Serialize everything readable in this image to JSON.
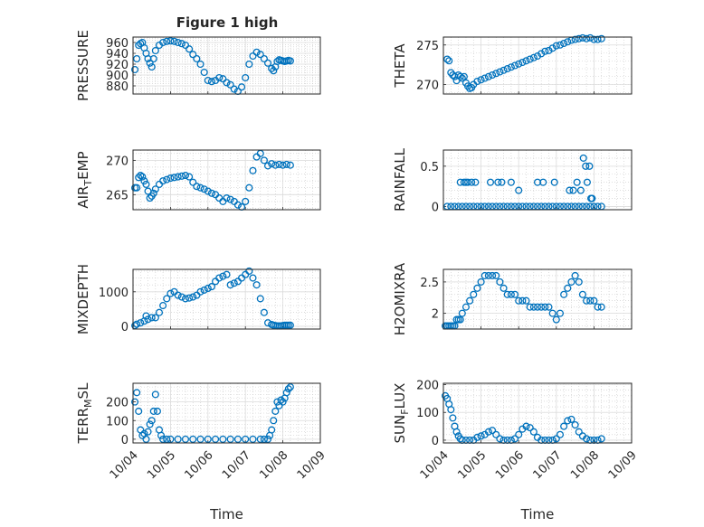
{
  "figure_title": "Figure 1 high",
  "x_tick_labels": [
    "10/04",
    "10/05",
    "10/06",
    "10/07",
    "10/08",
    "10/09"
  ],
  "x_label": "Time",
  "marker_color": "#0072BD",
  "chart_data": [
    {
      "type": "scatter",
      "ylabel": "PRESSURE",
      "yticks": [
        "880",
        "900",
        "920",
        "940",
        "960"
      ],
      "ylim": [
        865,
        970
      ],
      "xlim": [
        0,
        5
      ],
      "x": [
        0.05,
        0.1,
        0.15,
        0.2,
        0.25,
        0.3,
        0.35,
        0.4,
        0.45,
        0.5,
        0.55,
        0.6,
        0.7,
        0.8,
        0.9,
        1.0,
        1.1,
        1.2,
        1.3,
        1.4,
        1.5,
        1.6,
        1.7,
        1.8,
        1.9,
        2.0,
        2.1,
        2.2,
        2.3,
        2.4,
        2.5,
        2.6,
        2.7,
        2.8,
        2.9,
        3.0,
        3.1,
        3.2,
        3.3,
        3.4,
        3.5,
        3.6,
        3.7,
        3.75,
        3.8,
        3.85,
        3.9,
        3.95,
        4.0,
        4.05,
        4.1,
        4.15,
        4.2
      ],
      "y": [
        910,
        930,
        955,
        958,
        960,
        950,
        940,
        930,
        922,
        915,
        930,
        945,
        955,
        960,
        962,
        963,
        962,
        960,
        958,
        955,
        948,
        938,
        930,
        920,
        905,
        890,
        888,
        890,
        895,
        893,
        886,
        882,
        874,
        870,
        878,
        895,
        920,
        935,
        942,
        938,
        930,
        922,
        912,
        908,
        915,
        925,
        928,
        927,
        926,
        925,
        926,
        927,
        926
      ]
    },
    {
      "type": "scatter",
      "ylabel": "THETA",
      "yticks": [
        "270",
        "275"
      ],
      "ylim": [
        268.8,
        276
      ],
      "xlim": [
        0,
        5
      ],
      "x": [
        0.1,
        0.15,
        0.2,
        0.25,
        0.3,
        0.35,
        0.4,
        0.45,
        0.5,
        0.55,
        0.6,
        0.65,
        0.7,
        0.75,
        0.8,
        0.9,
        1.0,
        1.1,
        1.2,
        1.3,
        1.4,
        1.5,
        1.6,
        1.7,
        1.8,
        1.9,
        2.0,
        2.1,
        2.2,
        2.3,
        2.4,
        2.5,
        2.6,
        2.7,
        2.8,
        2.9,
        3.0,
        3.1,
        3.2,
        3.3,
        3.4,
        3.5,
        3.6,
        3.7,
        3.8,
        3.9,
        4.0,
        4.1,
        4.2
      ],
      "y": [
        273.2,
        273.0,
        271.5,
        271.2,
        271.0,
        270.5,
        271.2,
        271.0,
        270.8,
        271.0,
        270.2,
        269.8,
        269.5,
        269.6,
        270.0,
        270.4,
        270.6,
        270.8,
        271.0,
        271.2,
        271.4,
        271.6,
        271.8,
        272.0,
        272.2,
        272.4,
        272.6,
        272.8,
        273.0,
        273.2,
        273.4,
        273.6,
        273.9,
        274.2,
        274.3,
        274.6,
        274.9,
        275.0,
        275.2,
        275.4,
        275.6,
        275.7,
        275.8,
        275.9,
        275.8,
        275.9,
        275.7,
        275.7,
        275.8
      ]
    },
    {
      "type": "scatter",
      "ylabel": "AIR_TEMP",
      "yticks": [
        "265",
        "270"
      ],
      "ylim": [
        262.8,
        271.5
      ],
      "xlim": [
        0,
        5
      ],
      "x": [
        0.05,
        0.1,
        0.15,
        0.2,
        0.25,
        0.3,
        0.35,
        0.4,
        0.45,
        0.5,
        0.55,
        0.6,
        0.7,
        0.8,
        0.9,
        1.0,
        1.1,
        1.2,
        1.3,
        1.4,
        1.5,
        1.6,
        1.7,
        1.8,
        1.9,
        2.0,
        2.1,
        2.2,
        2.3,
        2.4,
        2.5,
        2.6,
        2.7,
        2.8,
        2.9,
        3.0,
        3.1,
        3.2,
        3.3,
        3.4,
        3.5,
        3.6,
        3.7,
        3.8,
        3.9,
        4.0,
        4.1,
        4.2
      ],
      "y": [
        266,
        266,
        267.5,
        267.8,
        267.6,
        267,
        266.5,
        265.5,
        264.5,
        264.8,
        265.2,
        265.8,
        266.5,
        267,
        267.2,
        267.4,
        267.5,
        267.6,
        267.7,
        267.8,
        267.6,
        266.8,
        266.2,
        266.0,
        265.8,
        265.5,
        265.2,
        265.0,
        264.5,
        264.0,
        264.5,
        264.3,
        264.0,
        263.5,
        263.2,
        264.0,
        266.0,
        268.5,
        270.5,
        271.0,
        270.0,
        269.2,
        269.5,
        269.3,
        269.4,
        269.3,
        269.4,
        269.3
      ]
    },
    {
      "type": "scatter",
      "ylabel": "RAINFALL",
      "yticks": [
        "0",
        "0.5"
      ],
      "ylim": [
        -0.04,
        0.7
      ],
      "xlim": [
        0,
        5
      ],
      "x": [
        0.1,
        0.2,
        0.3,
        0.4,
        0.5,
        0.6,
        0.7,
        0.8,
        0.9,
        1.0,
        1.1,
        1.2,
        1.3,
        1.4,
        1.5,
        1.6,
        1.7,
        1.8,
        1.9,
        2.0,
        2.1,
        2.2,
        2.3,
        2.4,
        2.5,
        2.6,
        2.7,
        2.8,
        2.9,
        3.0,
        3.1,
        3.2,
        3.3,
        3.4,
        3.5,
        3.6,
        3.7,
        3.8,
        3.9,
        4.0,
        4.1,
        4.2,
        0.45,
        0.55,
        0.6,
        0.65,
        0.75,
        0.85,
        1.25,
        1.45,
        1.55,
        1.8,
        2.0,
        2.5,
        2.65,
        2.95,
        3.35,
        3.45,
        3.55,
        3.65,
        3.72,
        3.78,
        3.82,
        3.88,
        3.92,
        3.95
      ],
      "y": [
        0,
        0,
        0,
        0,
        0,
        0,
        0,
        0,
        0,
        0,
        0,
        0,
        0,
        0,
        0,
        0,
        0,
        0,
        0,
        0,
        0,
        0,
        0,
        0,
        0,
        0,
        0,
        0,
        0,
        0,
        0,
        0,
        0,
        0,
        0,
        0,
        0,
        0,
        0,
        0,
        0,
        0,
        0.3,
        0.3,
        0.3,
        0.3,
        0.3,
        0.3,
        0.3,
        0.3,
        0.3,
        0.3,
        0.2,
        0.3,
        0.3,
        0.3,
        0.2,
        0.2,
        0.3,
        0.2,
        0.6,
        0.5,
        0.3,
        0.5,
        0.1,
        0.1
      ]
    },
    {
      "type": "scatter",
      "ylabel": "MIXDEPTH",
      "yticks": [
        "0",
        "1000"
      ],
      "ylim": [
        -80,
        1650
      ],
      "xlim": [
        0,
        5
      ],
      "x": [
        0.05,
        0.1,
        0.2,
        0.3,
        0.35,
        0.4,
        0.5,
        0.6,
        0.7,
        0.8,
        0.9,
        1.0,
        1.1,
        1.2,
        1.3,
        1.4,
        1.5,
        1.6,
        1.7,
        1.8,
        1.9,
        2.0,
        2.1,
        2.2,
        2.3,
        2.4,
        2.5,
        2.6,
        2.7,
        2.8,
        2.9,
        3.0,
        3.1,
        3.2,
        3.3,
        3.4,
        3.5,
        3.6,
        3.7,
        3.75,
        3.8,
        3.85,
        3.9,
        3.95,
        4.0,
        4.05,
        4.1,
        4.15,
        4.2
      ],
      "y": [
        20,
        60,
        100,
        150,
        300,
        200,
        250,
        250,
        400,
        600,
        800,
        950,
        1000,
        900,
        850,
        800,
        820,
        850,
        900,
        1000,
        1050,
        1100,
        1150,
        1300,
        1400,
        1450,
        1500,
        1200,
        1250,
        1300,
        1400,
        1500,
        1600,
        1400,
        1200,
        800,
        400,
        100,
        50,
        30,
        20,
        10,
        10,
        10,
        20,
        30,
        30,
        30,
        30
      ]
    },
    {
      "type": "scatter",
      "ylabel": "H2OMIXRA",
      "yticks": [
        "2",
        "2.5"
      ],
      "ylim": [
        1.75,
        2.7
      ],
      "xlim": [
        0,
        5
      ],
      "x": [
        0.05,
        0.1,
        0.15,
        0.2,
        0.25,
        0.3,
        0.35,
        0.4,
        0.45,
        0.5,
        0.6,
        0.7,
        0.8,
        0.9,
        1.0,
        1.1,
        1.2,
        1.3,
        1.4,
        1.5,
        1.6,
        1.7,
        1.8,
        1.9,
        2.0,
        2.1,
        2.2,
        2.3,
        2.4,
        2.5,
        2.6,
        2.7,
        2.8,
        2.9,
        3.0,
        3.1,
        3.2,
        3.3,
        3.4,
        3.5,
        3.6,
        3.7,
        3.8,
        3.9,
        4.0,
        4.1,
        4.2
      ],
      "y": [
        1.8,
        1.8,
        1.8,
        1.8,
        1.8,
        1.8,
        1.9,
        1.9,
        1.9,
        2.0,
        2.1,
        2.2,
        2.3,
        2.4,
        2.5,
        2.6,
        2.6,
        2.6,
        2.6,
        2.5,
        2.4,
        2.3,
        2.3,
        2.3,
        2.2,
        2.2,
        2.2,
        2.1,
        2.1,
        2.1,
        2.1,
        2.1,
        2.1,
        2.0,
        1.9,
        2.0,
        2.3,
        2.4,
        2.5,
        2.6,
        2.5,
        2.3,
        2.2,
        2.2,
        2.2,
        2.1,
        2.1
      ]
    },
    {
      "type": "scatter",
      "ylabel": "TERR_MSL",
      "yticks": [
        "0",
        "100",
        "200"
      ],
      "ylim": [
        -20,
        300
      ],
      "xlim": [
        0,
        5
      ],
      "x": [
        0.05,
        0.1,
        0.15,
        0.2,
        0.25,
        0.3,
        0.35,
        0.4,
        0.45,
        0.5,
        0.55,
        0.6,
        0.65,
        0.7,
        0.75,
        0.8,
        0.9,
        1.0,
        1.2,
        1.4,
        1.6,
        1.8,
        2.0,
        2.2,
        2.4,
        2.6,
        2.8,
        3.0,
        3.2,
        3.4,
        3.5,
        3.6,
        3.65,
        3.7,
        3.75,
        3.8,
        3.85,
        3.9,
        3.95,
        4.0,
        4.05,
        4.1,
        4.15,
        4.2
      ],
      "y": [
        200,
        250,
        150,
        50,
        20,
        30,
        0,
        40,
        80,
        100,
        150,
        240,
        150,
        50,
        20,
        0,
        0,
        0,
        0,
        0,
        0,
        0,
        0,
        0,
        0,
        0,
        0,
        0,
        0,
        0,
        0,
        0,
        20,
        50,
        100,
        150,
        200,
        180,
        210,
        200,
        220,
        250,
        270,
        280
      ]
    },
    {
      "type": "scatter",
      "ylabel": "SUN_FLUX",
      "yticks": [
        "0",
        "100",
        "200"
      ],
      "ylim": [
        -10,
        205
      ],
      "xlim": [
        0,
        5
      ],
      "x": [
        0.05,
        0.1,
        0.15,
        0.2,
        0.25,
        0.3,
        0.35,
        0.4,
        0.45,
        0.5,
        0.6,
        0.7,
        0.8,
        0.9,
        1.0,
        1.1,
        1.2,
        1.3,
        1.4,
        1.5,
        1.6,
        1.7,
        1.8,
        1.9,
        2.0,
        2.1,
        2.2,
        2.3,
        2.4,
        2.5,
        2.6,
        2.7,
        2.8,
        2.9,
        3.0,
        3.1,
        3.2,
        3.3,
        3.4,
        3.5,
        3.6,
        3.7,
        3.8,
        3.9,
        4.0,
        4.1,
        4.2
      ],
      "y": [
        160,
        150,
        130,
        110,
        80,
        50,
        30,
        15,
        5,
        0,
        0,
        0,
        0,
        10,
        15,
        20,
        30,
        35,
        20,
        5,
        0,
        0,
        0,
        5,
        20,
        40,
        50,
        45,
        30,
        10,
        0,
        0,
        0,
        0,
        5,
        20,
        50,
        70,
        75,
        55,
        30,
        15,
        5,
        0,
        0,
        0,
        5
      ]
    }
  ]
}
